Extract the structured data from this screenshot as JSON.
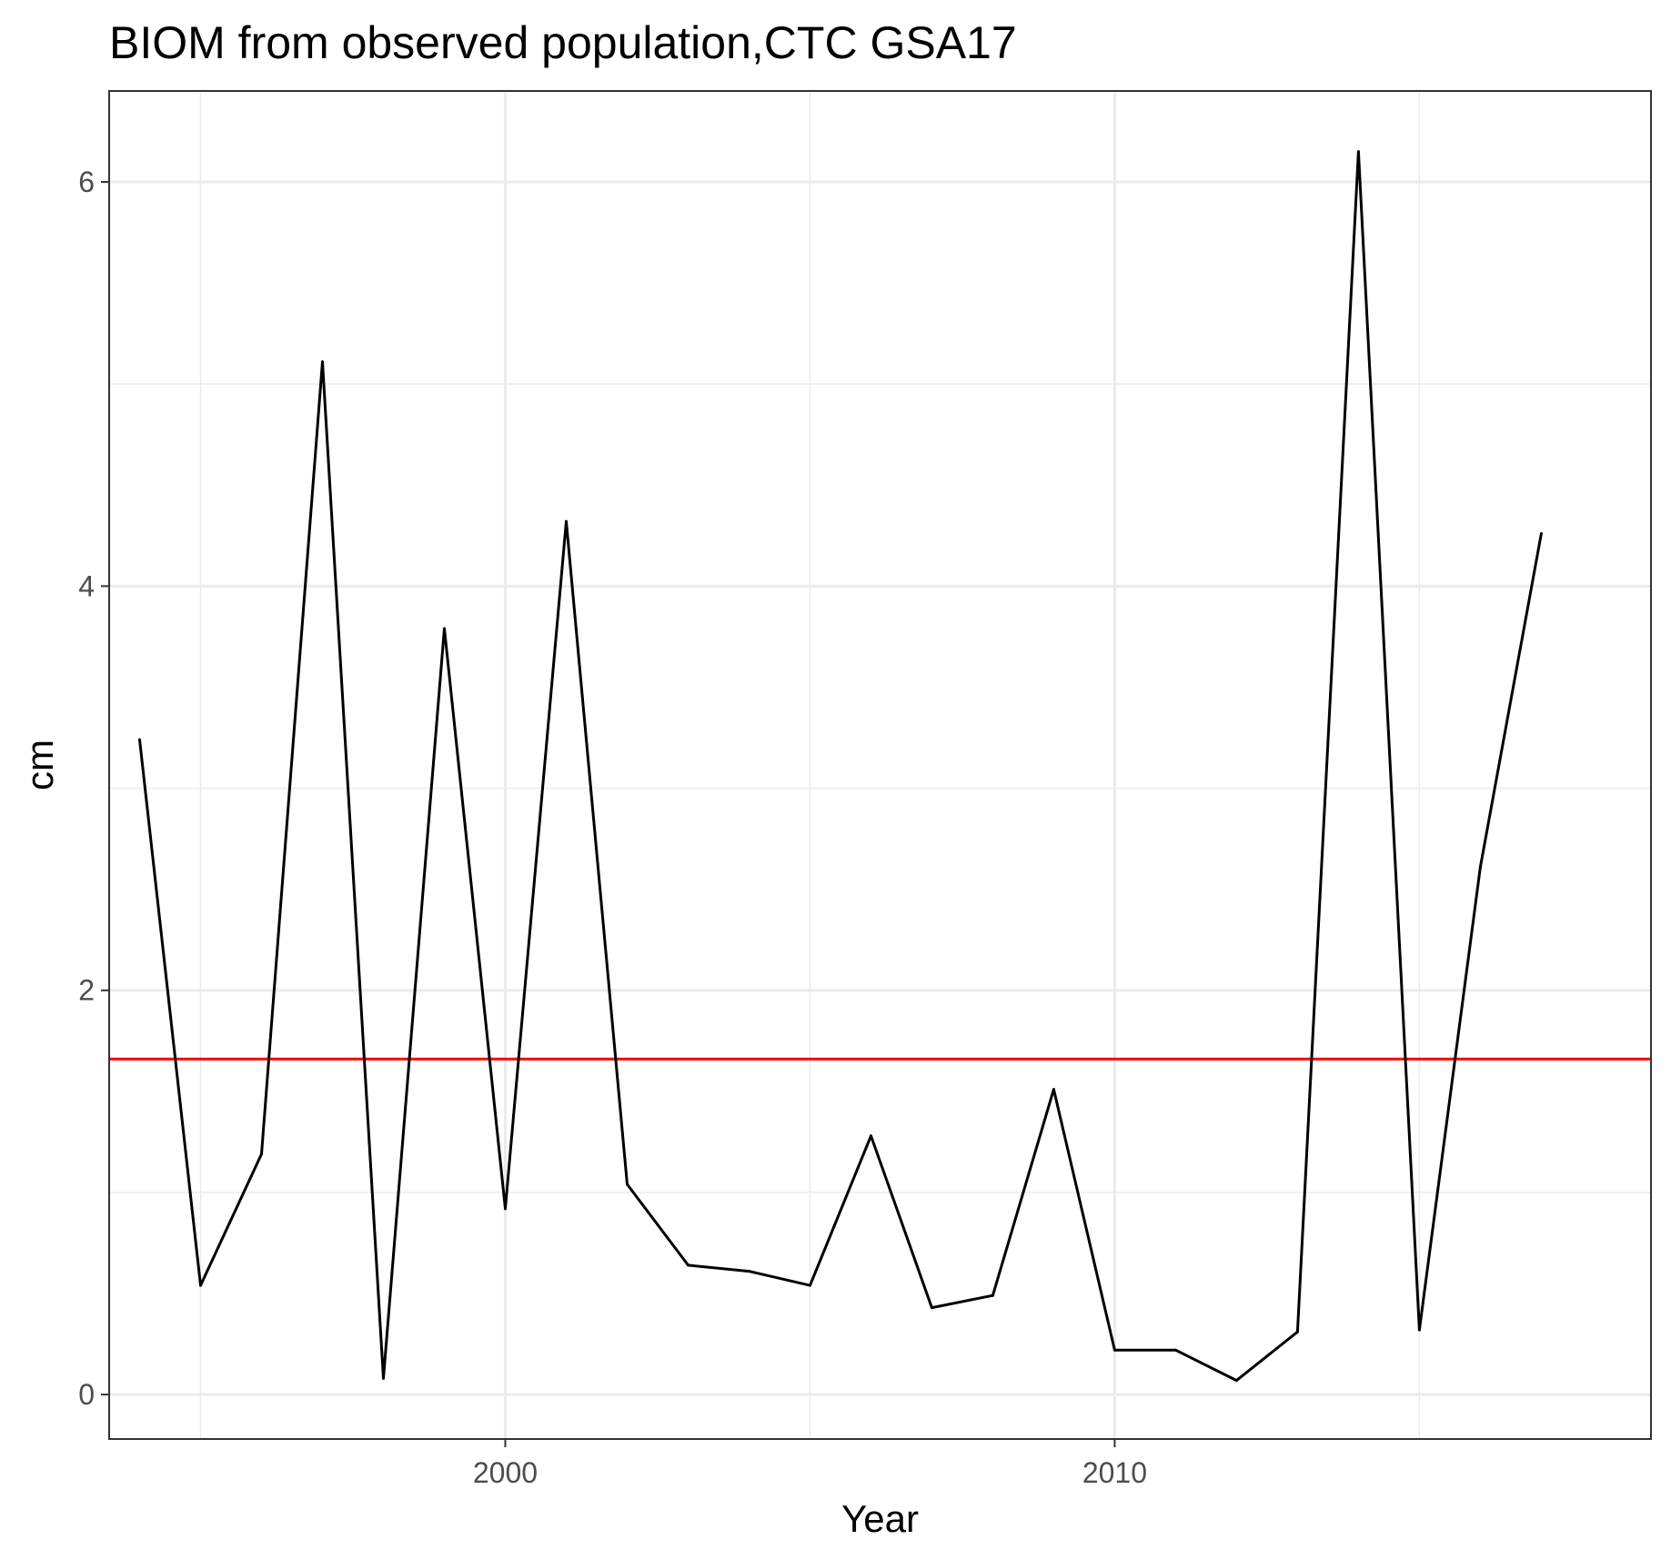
{
  "chart_data": {
    "type": "line",
    "title": "BIOM from observed population,CTC GSA17",
    "xlabel": "Year",
    "ylabel": "cm",
    "xlim": [
      1993.5,
      2018.8
    ],
    "ylim": [
      -0.22,
      6.45
    ],
    "x_ticks": [
      2000,
      2010
    ],
    "x_minor_ticks": [
      1995,
      2005,
      2015
    ],
    "y_ticks": [
      0,
      2,
      4,
      6
    ],
    "y_minor_ticks": [
      1,
      3,
      5
    ],
    "grid": true,
    "series": [
      {
        "color": "#000000",
        "x": [
          1994,
          1995,
          1996,
          1997,
          1998,
          1999,
          2000,
          2001,
          2002,
          2003,
          2004,
          2005,
          2006,
          2007,
          2008,
          2009,
          2010,
          2011,
          2012,
          2013,
          2014,
          2015,
          2016,
          2017
        ],
        "values": [
          3.24,
          0.54,
          1.19,
          5.11,
          0.08,
          3.79,
          0.92,
          4.32,
          1.04,
          0.64,
          0.61,
          0.54,
          1.28,
          0.43,
          0.49,
          1.51,
          0.22,
          0.22,
          0.07,
          0.31,
          6.15,
          0.32,
          2.61,
          4.26
        ]
      }
    ],
    "reference_line": {
      "y": 1.66,
      "color": "#ff0000"
    }
  }
}
